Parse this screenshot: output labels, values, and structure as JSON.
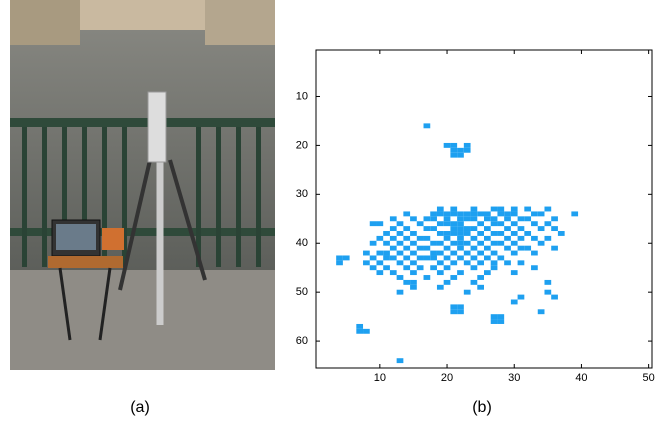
{
  "captions": [
    "(a)",
    "(b)"
  ],
  "chart_data": {
    "type": "binary-image",
    "color": "#1ea0f0",
    "xlim": [
      0.5,
      50.5
    ],
    "ylim": [
      0.5,
      65.5
    ],
    "y_reversed": true,
    "xticks": [
      10,
      20,
      30,
      40,
      50
    ],
    "yticks": [
      10,
      20,
      30,
      40,
      50,
      60
    ],
    "rows": [
      {
        "y": 16,
        "x": [
          17
        ]
      },
      {
        "y": 20,
        "x": [
          20,
          21,
          23
        ]
      },
      {
        "y": 21,
        "x": [
          21,
          22,
          23
        ]
      },
      {
        "y": 22,
        "x": [
          21,
          22
        ]
      },
      {
        "y": 33,
        "x": [
          19,
          21,
          24,
          27,
          28,
          30,
          32,
          35
        ]
      },
      {
        "y": 34,
        "x": [
          14,
          18,
          19,
          20,
          21,
          22,
          23,
          24,
          25,
          26,
          28,
          29,
          30,
          33,
          34,
          39
        ]
      },
      {
        "y": 35,
        "x": [
          12,
          15,
          17,
          18,
          20,
          22,
          23,
          24,
          26,
          27,
          29,
          31,
          32,
          36
        ]
      },
      {
        "y": 36,
        "x": [
          9,
          10,
          13,
          16,
          19,
          20,
          21,
          22,
          25,
          27,
          28,
          30,
          33,
          35
        ]
      },
      {
        "y": 37,
        "x": [
          12,
          14,
          17,
          18,
          21,
          22,
          23,
          24,
          26,
          29,
          31,
          34,
          36
        ]
      },
      {
        "y": 38,
        "x": [
          11,
          13,
          15,
          19,
          20,
          21,
          22,
          23,
          25,
          27,
          28,
          30,
          32,
          37
        ]
      },
      {
        "y": 39,
        "x": [
          10,
          12,
          14,
          16,
          17,
          20,
          22,
          24,
          26,
          29,
          31,
          33,
          35
        ]
      },
      {
        "y": 40,
        "x": [
          9,
          11,
          13,
          15,
          18,
          19,
          21,
          22,
          23,
          25,
          27,
          28,
          30,
          34
        ]
      },
      {
        "y": 41,
        "x": [
          12,
          14,
          16,
          17,
          20,
          22,
          24,
          26,
          29,
          31,
          32,
          36
        ]
      },
      {
        "y": 42,
        "x": [
          8,
          10,
          11,
          13,
          15,
          18,
          19,
          21,
          23,
          25,
          27,
          30,
          33
        ]
      },
      {
        "y": 43,
        "x": [
          4,
          5,
          9,
          11,
          12,
          14,
          16,
          17,
          18,
          20,
          22,
          24,
          26,
          28
        ]
      },
      {
        "y": 44,
        "x": [
          4,
          8,
          10,
          13,
          15,
          19,
          21,
          23,
          25,
          27,
          29,
          31
        ]
      },
      {
        "y": 45,
        "x": [
          9,
          11,
          14,
          16,
          18,
          20,
          24,
          27,
          33
        ]
      },
      {
        "y": 46,
        "x": [
          10,
          12,
          15,
          19,
          22,
          26,
          30
        ]
      },
      {
        "y": 47,
        "x": [
          13,
          17,
          21,
          25
        ]
      },
      {
        "y": 48,
        "x": [
          14,
          15,
          20,
          24,
          35
        ]
      },
      {
        "y": 49,
        "x": [
          15,
          19,
          25
        ]
      },
      {
        "y": 50,
        "x": [
          13,
          23,
          35
        ]
      },
      {
        "y": 51,
        "x": [
          31,
          36
        ]
      },
      {
        "y": 52,
        "x": [
          30
        ]
      },
      {
        "y": 53,
        "x": [
          21,
          22
        ]
      },
      {
        "y": 54,
        "x": [
          21,
          22,
          34
        ]
      },
      {
        "y": 55,
        "x": [
          27,
          28
        ]
      },
      {
        "y": 56,
        "x": [
          27,
          28
        ]
      },
      {
        "y": 57,
        "x": [
          7
        ]
      },
      {
        "y": 58,
        "x": [
          7,
          8
        ]
      },
      {
        "y": 64,
        "x": [
          13
        ]
      }
    ]
  }
}
